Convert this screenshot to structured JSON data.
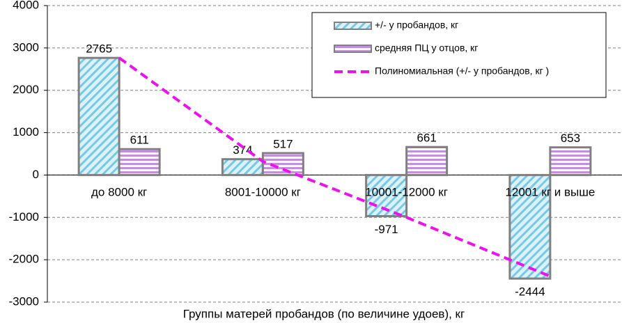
{
  "chart_data": {
    "type": "bar",
    "x_label": "Группы матерей пробандов (по величине удоев), кг",
    "categories": [
      "до 8000 кг",
      "8001-10000 кг",
      "10001-12000 кг",
      "12001 кг и выше"
    ],
    "series": [
      {
        "name": "+/- у пробандов, кг",
        "color": "#7cc6e3",
        "values": [
          2765,
          374,
          -971,
          -2444
        ]
      },
      {
        "name": "средняя ПЦ у отцов, кг",
        "color": "#c48fe0",
        "values": [
          611,
          517,
          661,
          653
        ]
      },
      {
        "name": "Полиномиальная (+/- у пробандов, кг )",
        "type": "line",
        "color": "#ee11ee",
        "values": [
          2765,
          320,
          -1000,
          -2390
        ]
      }
    ],
    "ylim": [
      -3000,
      4000
    ],
    "yticks": [
      -3000,
      -2000,
      -1000,
      0,
      1000,
      2000,
      3000,
      4000
    ],
    "grid": true,
    "legend": "top-right"
  }
}
